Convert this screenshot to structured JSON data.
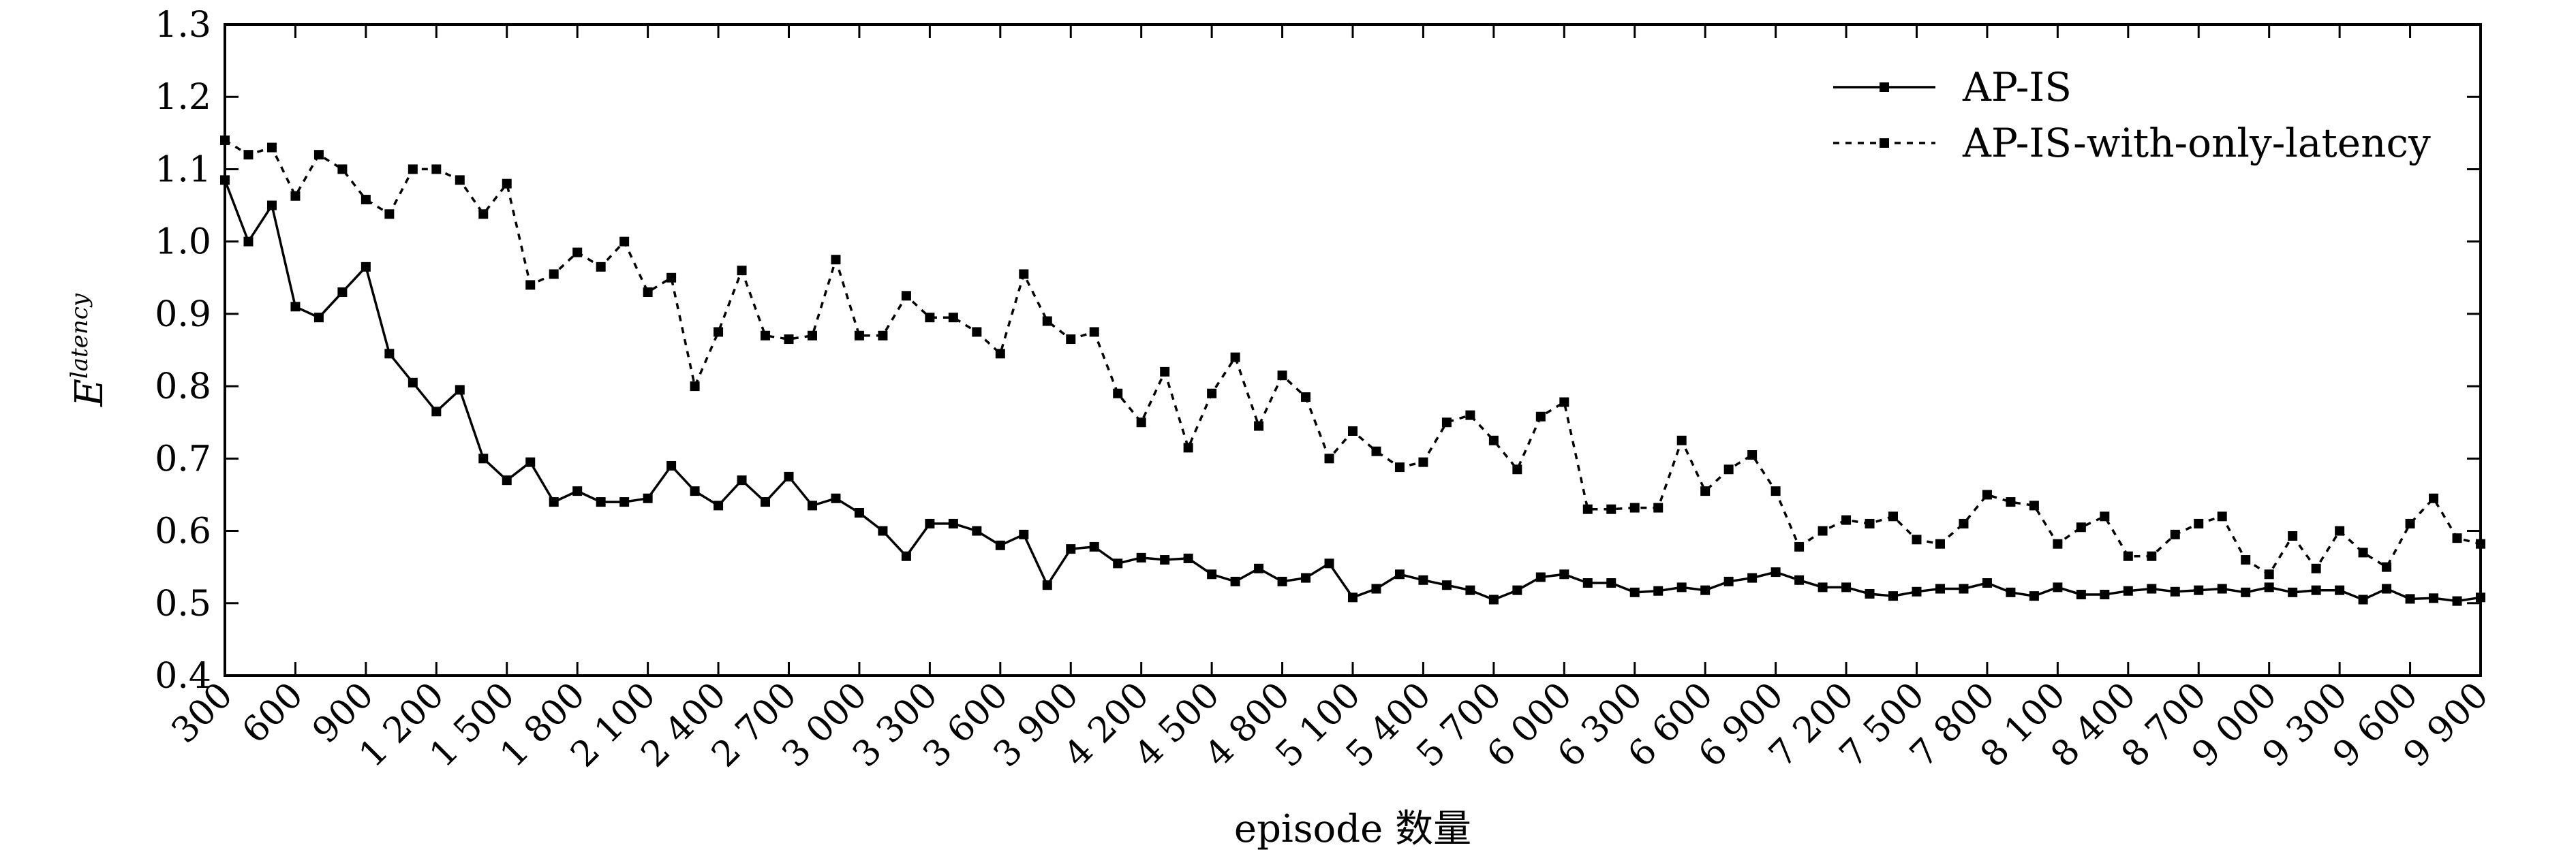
{
  "chart_data": {
    "type": "line",
    "xlabel": "episode 数量",
    "ylabel_base": "E",
    "ylabel_sup": "latency",
    "xlim": [
      300,
      9900
    ],
    "ylim": [
      0.4,
      1.3
    ],
    "grid": false,
    "legend_position": "top-right",
    "x_ticks": [
      300,
      600,
      900,
      1200,
      1500,
      1800,
      2100,
      2400,
      2700,
      3000,
      3300,
      3600,
      3900,
      4200,
      4500,
      4800,
      5100,
      5400,
      5700,
      6000,
      6300,
      6600,
      6900,
      7200,
      7500,
      7800,
      8100,
      8400,
      8700,
      9000,
      9300,
      9600,
      9900
    ],
    "x_tick_labels": [
      "300",
      "600",
      "900",
      "1 200",
      "1 500",
      "1 800",
      "2 100",
      "2 400",
      "2 700",
      "3 000",
      "3 300",
      "3 600",
      "3 900",
      "4 200",
      "4 500",
      "4 800",
      "5 100",
      "5 400",
      "5 700",
      "6 000",
      "6 300",
      "6 600",
      "6 900",
      "7 200",
      "7 500",
      "7 800",
      "8 100",
      "8 400",
      "8 700",
      "9 000",
      "9 300",
      "9 600",
      "9 900"
    ],
    "y_ticks": [
      0.4,
      0.5,
      0.6,
      0.7,
      0.8,
      0.9,
      1.0,
      1.1,
      1.2,
      1.3
    ],
    "y_tick_labels": [
      "0.4",
      "0.5",
      "0.6",
      "0.7",
      "0.8",
      "0.9",
      "1.0",
      "1.1",
      "1.2",
      "1.3"
    ],
    "x": [
      300,
      400,
      500,
      600,
      700,
      800,
      900,
      1000,
      1100,
      1200,
      1300,
      1400,
      1500,
      1600,
      1700,
      1800,
      1900,
      2000,
      2100,
      2200,
      2300,
      2400,
      2500,
      2600,
      2700,
      2800,
      2900,
      3000,
      3100,
      3200,
      3300,
      3400,
      3500,
      3600,
      3700,
      3800,
      3900,
      4000,
      4100,
      4200,
      4300,
      4400,
      4500,
      4600,
      4700,
      4800,
      4900,
      5000,
      5100,
      5200,
      5300,
      5400,
      5500,
      5600,
      5700,
      5800,
      5900,
      6000,
      6100,
      6200,
      6300,
      6400,
      6500,
      6600,
      6700,
      6800,
      6900,
      7000,
      7100,
      7200,
      7300,
      7400,
      7500,
      7600,
      7700,
      7800,
      7900,
      8000,
      8100,
      8200,
      8300,
      8400,
      8500,
      8600,
      8700,
      8800,
      8900,
      9000,
      9100,
      9200,
      9300,
      9400,
      9500,
      9600,
      9700,
      9800,
      9900
    ],
    "series": [
      {
        "name": "AP-IS",
        "style": "solid",
        "color": "#000000",
        "marker": "square",
        "values": [
          1.085,
          1.0,
          1.05,
          0.91,
          0.895,
          0.93,
          0.965,
          0.845,
          0.805,
          0.765,
          0.795,
          0.7,
          0.67,
          0.695,
          0.64,
          0.655,
          0.64,
          0.64,
          0.645,
          0.69,
          0.655,
          0.635,
          0.67,
          0.64,
          0.675,
          0.635,
          0.645,
          0.625,
          0.6,
          0.565,
          0.61,
          0.61,
          0.6,
          0.58,
          0.595,
          0.525,
          0.575,
          0.578,
          0.555,
          0.563,
          0.56,
          0.562,
          0.54,
          0.53,
          0.548,
          0.53,
          0.535,
          0.555,
          0.508,
          0.52,
          0.54,
          0.532,
          0.525,
          0.518,
          0.505,
          0.518,
          0.536,
          0.54,
          0.528,
          0.528,
          0.515,
          0.517,
          0.522,
          0.518,
          0.53,
          0.535,
          0.543,
          0.532,
          0.522,
          0.522,
          0.513,
          0.51,
          0.516,
          0.52,
          0.52,
          0.528,
          0.515,
          0.51,
          0.522,
          0.512,
          0.512,
          0.517,
          0.52,
          0.516,
          0.518,
          0.52,
          0.515,
          0.522,
          0.515,
          0.518,
          0.518,
          0.505,
          0.52,
          0.506,
          0.507,
          0.503,
          0.508
        ]
      },
      {
        "name": "AP-IS-with-only-latency",
        "style": "dotted",
        "color": "#000000",
        "marker": "square",
        "values": [
          1.14,
          1.12,
          1.13,
          1.063,
          1.12,
          1.1,
          1.058,
          1.038,
          1.1,
          1.1,
          1.085,
          1.038,
          1.08,
          0.94,
          0.955,
          0.985,
          0.965,
          1.0,
          0.93,
          0.95,
          0.8,
          0.875,
          0.96,
          0.87,
          0.865,
          0.87,
          0.975,
          0.87,
          0.87,
          0.925,
          0.895,
          0.895,
          0.875,
          0.845,
          0.955,
          0.89,
          0.865,
          0.875,
          0.79,
          0.75,
          0.82,
          0.715,
          0.79,
          0.84,
          0.745,
          0.815,
          0.785,
          0.7,
          0.738,
          0.71,
          0.688,
          0.695,
          0.75,
          0.76,
          0.725,
          0.685,
          0.758,
          0.778,
          0.63,
          0.63,
          0.632,
          0.632,
          0.725,
          0.655,
          0.685,
          0.705,
          0.655,
          0.578,
          0.6,
          0.615,
          0.61,
          0.62,
          0.588,
          0.582,
          0.61,
          0.65,
          0.64,
          0.635,
          0.582,
          0.605,
          0.62,
          0.565,
          0.565,
          0.595,
          0.61,
          0.62,
          0.56,
          0.54,
          0.593,
          0.548,
          0.6,
          0.57,
          0.55,
          0.61,
          0.645,
          0.59,
          0.582
        ]
      }
    ]
  }
}
